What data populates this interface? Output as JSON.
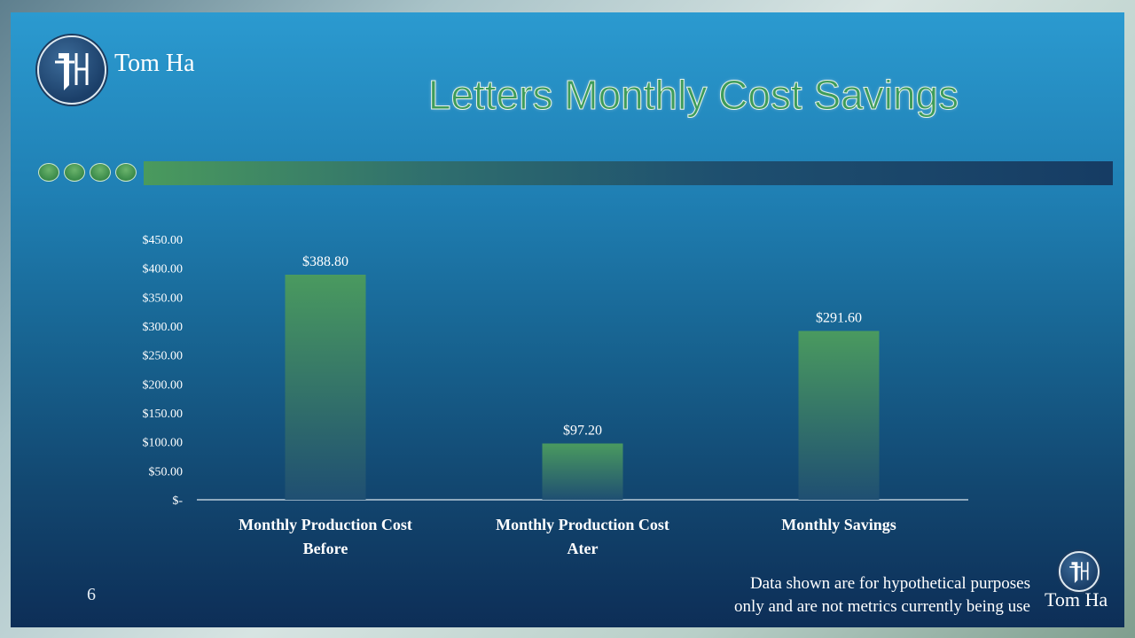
{
  "brand": {
    "name_top": "Tom Ha",
    "name_bottom": "Tom Ha"
  },
  "slide": {
    "title": "Letters Monthly Cost Savings",
    "page_number": "6",
    "footnote_line1": "Data  shown are for hypothetical  purposes",
    "footnote_line2": "only and are not metrics currently  being use"
  },
  "colors": {
    "accent_green": "#3e9c5a",
    "bar_top": "#4a9a5f",
    "bar_bottom": "#1f4f72"
  },
  "chart_data": {
    "type": "bar",
    "categories": [
      [
        "Monthly Production Cost",
        "Before"
      ],
      [
        "Monthly Production Cost",
        "Ater"
      ],
      [
        "Monthly Savings"
      ]
    ],
    "values": [
      388.8,
      97.2,
      291.6
    ],
    "data_labels": [
      "$388.80",
      "$97.20",
      "$291.60"
    ],
    "y_ticks": [
      0,
      50,
      100,
      150,
      200,
      250,
      300,
      350,
      400,
      450
    ],
    "y_tick_labels": [
      "$-",
      "$50.00",
      "$100.00",
      "$150.00",
      "$200.00",
      "$250.00",
      "$300.00",
      "$350.00",
      "$400.00",
      "$450.00"
    ],
    "ylim": [
      0,
      450
    ],
    "title": "",
    "xlabel": "",
    "ylabel": "",
    "grid": false,
    "legend": "none"
  }
}
